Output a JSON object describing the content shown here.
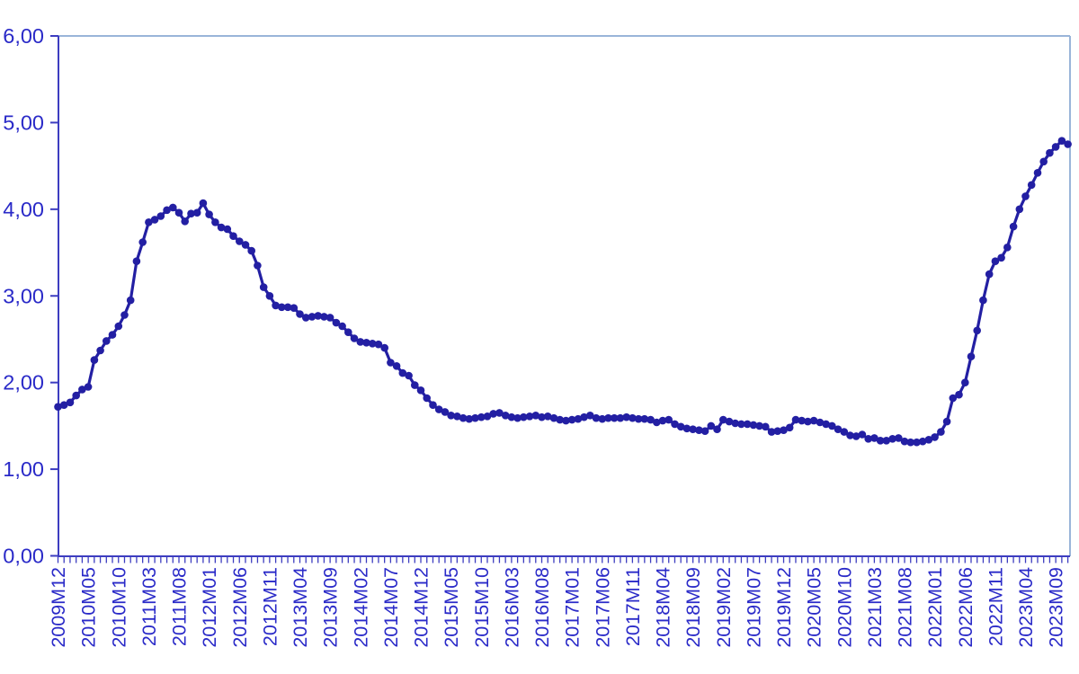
{
  "page": {
    "background_color": "#ffffff"
  },
  "chart_data": {
    "type": "line",
    "title": "",
    "xlabel": "",
    "ylabel": "",
    "legend": "none",
    "grid": "off",
    "plot_border": {
      "top_right_color": "#9ab5d9",
      "axis_color": "#3d3dc0"
    },
    "series_color": "#231fa3",
    "tick_label_color": "#2a2ac8",
    "marker": "filled-circle",
    "ylim": [
      0,
      6
    ],
    "y_tick_labels": [
      "0,00",
      "1,00",
      "2,00",
      "3,00",
      "4,00",
      "5,00",
      "6,00"
    ],
    "y_tick_values": [
      0,
      1,
      2,
      3,
      4,
      5,
      6
    ],
    "x_monthly_range": {
      "start": "2009M12",
      "end": "2023M11",
      "count": 168
    },
    "x_label_every_n_months": 5,
    "x_tick_labels_shown": [
      "2009M12",
      "2010M05",
      "2010M10",
      "2011M03",
      "2011M08",
      "2012M01",
      "2012M06",
      "2012M11",
      "2013M04",
      "2013M09",
      "2014M02",
      "2014M07",
      "2014M12",
      "2015M05",
      "2015M10",
      "2016M03",
      "2016M08",
      "2017M01",
      "2017M06",
      "2017M11",
      "2018M04",
      "2018M09",
      "2019M02",
      "2019M07",
      "2019M12",
      "2020M05",
      "2020M10",
      "2021M03",
      "2021M08",
      "2022M01",
      "2022M06",
      "2022M11",
      "2023M04",
      "2023M09"
    ],
    "values": [
      1.72,
      1.74,
      1.77,
      1.85,
      1.92,
      1.95,
      2.26,
      2.37,
      2.48,
      2.55,
      2.65,
      2.78,
      2.95,
      3.4,
      3.62,
      3.85,
      3.88,
      3.92,
      3.99,
      4.02,
      3.96,
      3.86,
      3.95,
      3.96,
      4.07,
      3.94,
      3.85,
      3.79,
      3.77,
      3.69,
      3.63,
      3.59,
      3.52,
      3.35,
      3.1,
      3.0,
      2.89,
      2.87,
      2.87,
      2.86,
      2.79,
      2.75,
      2.76,
      2.77,
      2.76,
      2.75,
      2.69,
      2.65,
      2.58,
      2.51,
      2.47,
      2.46,
      2.45,
      2.44,
      2.4,
      2.23,
      2.19,
      2.11,
      2.08,
      1.97,
      1.91,
      1.82,
      1.74,
      1.69,
      1.66,
      1.62,
      1.61,
      1.59,
      1.58,
      1.59,
      1.6,
      1.61,
      1.64,
      1.65,
      1.62,
      1.6,
      1.59,
      1.6,
      1.61,
      1.62,
      1.6,
      1.61,
      1.59,
      1.57,
      1.56,
      1.57,
      1.58,
      1.6,
      1.62,
      1.59,
      1.58,
      1.59,
      1.59,
      1.59,
      1.6,
      1.59,
      1.58,
      1.58,
      1.57,
      1.54,
      1.56,
      1.57,
      1.52,
      1.49,
      1.47,
      1.46,
      1.45,
      1.44,
      1.5,
      1.46,
      1.57,
      1.55,
      1.53,
      1.52,
      1.52,
      1.51,
      1.5,
      1.49,
      1.43,
      1.44,
      1.45,
      1.48,
      1.57,
      1.56,
      1.55,
      1.56,
      1.54,
      1.52,
      1.5,
      1.46,
      1.43,
      1.39,
      1.38,
      1.4,
      1.35,
      1.36,
      1.33,
      1.33,
      1.35,
      1.36,
      1.32,
      1.31,
      1.31,
      1.32,
      1.34,
      1.37,
      1.43,
      1.55,
      1.82,
      1.86,
      2.0,
      2.3,
      2.6,
      2.95,
      3.25,
      3.4,
      3.44,
      3.56,
      3.8,
      4.0,
      4.15,
      4.28,
      4.42,
      4.55,
      4.65,
      4.72,
      4.79,
      4.75
    ]
  }
}
